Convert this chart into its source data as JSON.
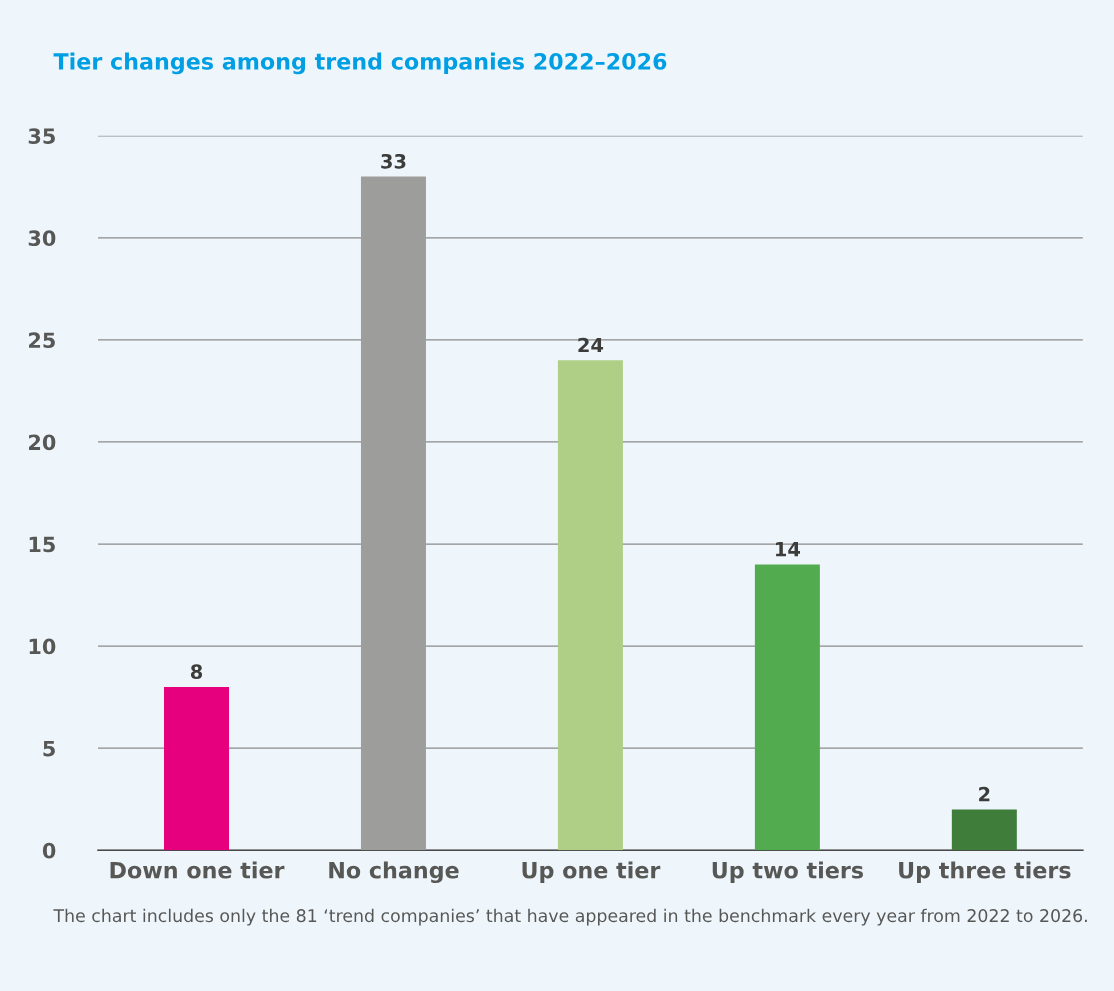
{
  "chart_data": {
    "type": "bar",
    "title": "Tier changes among trend companies 2022–2026",
    "categories": [
      "Down one tier",
      "No change",
      "Up one tier",
      "Up two tiers",
      "Up three tiers"
    ],
    "values": [
      8,
      33,
      24,
      14,
      2
    ],
    "colors": [
      "#e6007e",
      "#9d9d9c",
      "#b0cf86",
      "#52ab4f",
      "#3f7d3b"
    ],
    "ylim": [
      0,
      35
    ],
    "yticks": [
      0,
      5,
      10,
      15,
      20,
      25,
      30,
      35
    ],
    "grid": "y",
    "data_labels": true,
    "legend": false,
    "annotations": [
      "The chart includes only the 81 ‘trend companies’ that have appeared in the benchmark every year from 2022 to 2026."
    ]
  }
}
